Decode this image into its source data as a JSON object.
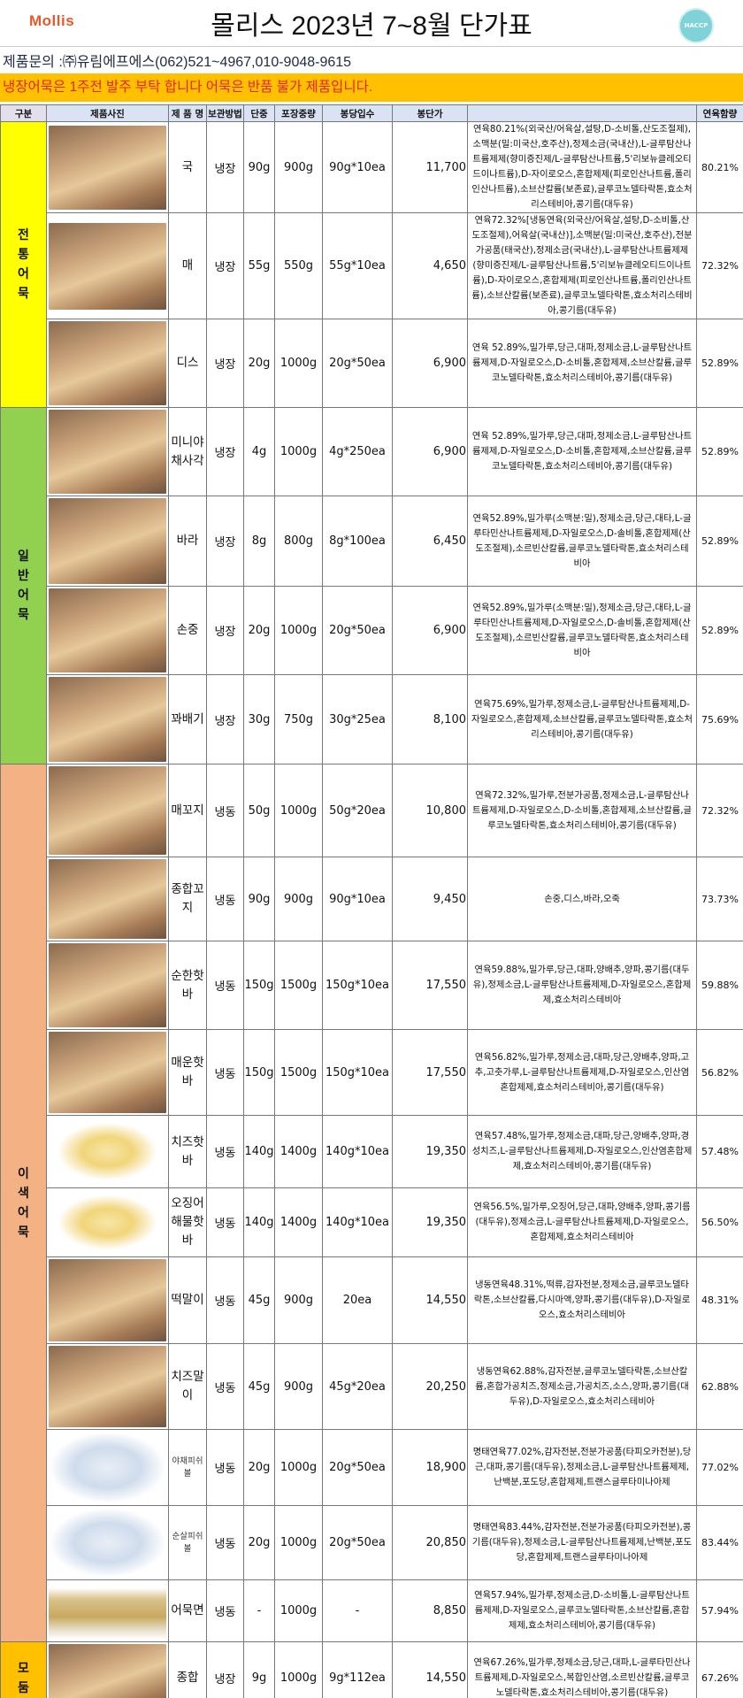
{
  "header": {
    "logo": "Mollis",
    "title": "몰리스 2023년 7~8월 단가표",
    "certification": "HACCP",
    "contact": "제품문의 :㈜유림에프에스(062)521~4967,010-9048-9615",
    "notice": "냉장어묵은 1주전 발주 부탁 합니다  어묵은 반품 불가 제품입니다."
  },
  "colors": {
    "notice_bg": "#FFC000",
    "notice_text": "#E8231A",
    "traditional": "#FFFF00",
    "general": "#92D050",
    "special": "#F4B183",
    "assorted": "#FFC000",
    "header_bg": "#DAE3F3"
  },
  "table": {
    "columns": [
      "구분",
      "제품사진",
      "제 품 명",
      "보관방법",
      "단중",
      "포장중량",
      "봉당입수",
      "봉단가",
      "",
      "연육함량"
    ],
    "categories": [
      {
        "label": "전통어묵",
        "color": "#FFFF00",
        "rows": 3
      },
      {
        "label": "일반어묵",
        "color": "#92D050",
        "rows": 4
      },
      {
        "label": "이색어묵",
        "color": "#F4B183",
        "rows": 11
      },
      {
        "label": "모둠",
        "color": "#FFC000",
        "rows": 1
      }
    ],
    "rows": [
      {
        "name": "국",
        "storage": "냉장",
        "unit_weight": "90g",
        "pack_weight": "900g",
        "per_pack": "90g*10ea",
        "price": "11,700",
        "ingredients": "연육80.21%(외국산/어육살,설탕,D-소비톨,산도조절제),소맥분(밀:미국산,호주산),정제소금(국내산),L-글루탐산나트륨제제(향미증진제/L-글루탐산나트륨,5'리보뉴클레오티드이나트륨),D-자이로오스,혼합제제(피로인산나트륨,폴리인산나트륨),소브산칼륨(보존료),글루코노델타락톤,효소처리스테비아,콩기름(대두유)",
        "fish_pct": "80.21%"
      },
      {
        "name": "매",
        "storage": "냉장",
        "unit_weight": "55g",
        "pack_weight": "550g",
        "per_pack": "55g*10ea",
        "price": "4,650",
        "ingredients": "연육72.32%[냉동연육(외국산/어육살,설탕,D-소비톨,산도조절제),어육살(국내산)],소맥분(밀:미국산,호주산),전분가공품(태국산),정제소금(국내산),L-글루탐산나트륨제제(향미증진제/L-글루탐산나트륨,5'리보뉴클레오티드이나트륨),D-자이로오스,혼합제제(피로인산나트륨,폴리인산나트륨),소브산칼륨(보존료),글루코노델타락톤,효소처리스테비아,콩기름(대두유)",
        "fish_pct": "72.32%"
      },
      {
        "name": "디스",
        "storage": "냉장",
        "unit_weight": "20g",
        "pack_weight": "1000g",
        "per_pack": "20g*50ea",
        "price": "6,900",
        "ingredients": "연육 52.89%,밀가루,당근,대파,정제소금,L-글루탐산나트륨제제,D-자일로오스,D-소비톨,혼합제제,소브산칼륨,글루코노델타락톤,효소처리스테비아,콩기름(대두유)",
        "fish_pct": "52.89%"
      },
      {
        "name": "미니야채사각",
        "storage": "냉장",
        "unit_weight": "4g",
        "pack_weight": "1000g",
        "per_pack": "4g*250ea",
        "price": "6,900",
        "ingredients": "연육 52.89%,밀가루,당근,대파,정제소금,L-글루탐산나트륨제제,D-자일로오스,D-소비톨,혼합제제,소브산칼륨,글루코노델타락톤,효소처리스테비아,콩기름(대두유)",
        "fish_pct": "52.89%"
      },
      {
        "name": "바라",
        "storage": "냉장",
        "unit_weight": "8g",
        "pack_weight": "800g",
        "per_pack": "8g*100ea",
        "price": "6,450",
        "ingredients": "연육52.89%,밀가루(소맥분:밀),정제소금,당근,대타,L-글루타민산나트륨제제,D-자일로오스,D-솔비톨,혼합제제(산도조절제),소르빈산칼륨,글루코노델타락톤,효소처리스테비아",
        "fish_pct": "52.89%"
      },
      {
        "name": "손중",
        "storage": "냉장",
        "unit_weight": "20g",
        "pack_weight": "1000g",
        "per_pack": "20g*50ea",
        "price": "6,900",
        "ingredients": "연육52.89%,밀가루(소맥분:밀),정제소금,당근,대타,L-글루타민산나트륨제제,D-자일로오스,D-솔비톨,혼합제제(산도조절제),소르빈산칼륨,글루코노델타락톤,효소처리스테비아",
        "fish_pct": "52.89%"
      },
      {
        "name": "꽈배기",
        "storage": "냉장",
        "unit_weight": "30g",
        "pack_weight": "750g",
        "per_pack": "30g*25ea",
        "price": "8,100",
        "ingredients": "연육75.69%,밀가루,정제소금,L-글루탐산나트륨제제,D-자일로오스,혼합제제,소브산칼륨,글루코노델타락톤,효소처리스테비아,콩기름(대두유)",
        "fish_pct": "75.69%"
      },
      {
        "name": "매꼬지",
        "storage": "냉동",
        "unit_weight": "50g",
        "pack_weight": "1000g",
        "per_pack": "50g*20ea",
        "price": "10,800",
        "ingredients": "연육72.32%,밀가루,전분가공품,정제소금,L-글루탐산나트륨제제,D-자일로오스,D-소비톨,혼합제제,소브산칼륨,글루코노델타락톤,효소처리스테비아,콩기름(대두유)",
        "fish_pct": "72.32%"
      },
      {
        "name": "종합꼬지",
        "storage": "냉동",
        "unit_weight": "90g",
        "pack_weight": "900g",
        "per_pack": "90g*10ea",
        "price": "9,450",
        "ingredients": "손중,디스,바라,오죽",
        "fish_pct": "73.73%"
      },
      {
        "name": "순한핫바",
        "storage": "냉동",
        "unit_weight": "150g",
        "pack_weight": "1500g",
        "per_pack": "150g*10ea",
        "price": "17,550",
        "ingredients": "연육59.88%,밀가루,당근,대파,양배추,양파,콩기름(대두유),정제소금,L-글루탐산나트륨제제,D-자일로오스,혼합제제,효소처리스테비아",
        "fish_pct": "59.88%"
      },
      {
        "name": "매운핫바",
        "storage": "냉동",
        "unit_weight": "150g",
        "pack_weight": "1500g",
        "per_pack": "150g*10ea",
        "price": "17,550",
        "ingredients": "연육56.82%,밀가루,정제소금,대파,당근,양배추,양파,고추,고춧가루,L-글루탐산나트륨제제,D-자일로오스,인산염혼합제제,효소처리스테비아,콩기름(대두유)",
        "fish_pct": "56.82%"
      },
      {
        "name": "치즈핫바",
        "storage": "냉동",
        "unit_weight": "140g",
        "pack_weight": "1400g",
        "per_pack": "140g*10ea",
        "price": "19,350",
        "ingredients": "연육57.48%,밀가루,정제소금,대파,당근,양배추,양파,경성치즈,L-글루탐산나트륨제제,D-자일로오스,인산염혼합제제,효소처리스테비아,콩기름(대두유)",
        "fish_pct": "57.48%"
      },
      {
        "name": "오징어해물핫바",
        "storage": "냉동",
        "unit_weight": "140g",
        "pack_weight": "1400g",
        "per_pack": "140g*10ea",
        "price": "19,350",
        "ingredients": "연육56.5%,밀가루,오징어,당근,대파,양배추,양파,콩기름(대두유),정제소금,L-글루탐산나트륨제제,D-자일로오스,혼합제제,효소처리스테비아",
        "fish_pct": "56.50%"
      },
      {
        "name": "떡말이",
        "storage": "냉동",
        "unit_weight": "45g",
        "pack_weight": "900g",
        "per_pack": "20ea",
        "price": "14,550",
        "ingredients": "냉동연육48.31%,떡류,감자전분,정제소금,글루코노델타락톤,소브산칼륨,다시마액,양파,콩기름(대두유),D-자일로오스,효소처리스테비아",
        "fish_pct": "48.31%"
      },
      {
        "name": "치즈말이",
        "storage": "냉동",
        "unit_weight": "45g",
        "pack_weight": "900g",
        "per_pack": "45g*20ea",
        "price": "20,250",
        "ingredients": "냉동연육62.88%,감자전분,글루코노델타락톤,소브산칼륨,혼합가공치즈,정제소금,가공치즈,소스,양파,콩기름(대두유),D-자일로오스,효소처리스테비아",
        "fish_pct": "62.88%"
      },
      {
        "name": "야채피쉬볼",
        "storage": "냉동",
        "unit_weight": "20g",
        "pack_weight": "1000g",
        "per_pack": "20g*50ea",
        "price": "18,900",
        "ingredients": "명태연육77.02%,감자전분,전분가공품(타피오카전분),당근,대파,콩기름(대두유),정제소금,L-글루탐산나트륨제제,난백분,포도당,혼합제제,트랜스글루타미나아제",
        "fish_pct": "77.02%"
      },
      {
        "name": "순살피쉬볼",
        "storage": "냉동",
        "unit_weight": "20g",
        "pack_weight": "1000g",
        "per_pack": "20g*50ea",
        "price": "20,850",
        "ingredients": "명태연육83.44%,감자전분,전분가공품(타피오카전분),콩기름(대두유),정제소금,L-글루탐산나트륨제제,난백분,포도당,혼합제제,트랜스글루타미나아제",
        "fish_pct": "83.44%"
      },
      {
        "name": "어묵면",
        "storage": "냉동",
        "unit_weight": "-",
        "pack_weight": "1000g",
        "per_pack": "-",
        "price": "8,850",
        "ingredients": "연육57.94%,밀가루,정제소금,D-소비톨,L-글루탐산나트륨제제,D-자일로오스,글루코노델타락톤,소브산칼륨,혼합제제,효소처리스테비아,콩기름(대두유)",
        "fish_pct": "57.94%"
      },
      {
        "name": "종합",
        "storage": "냉장",
        "unit_weight": "9g",
        "pack_weight": "1000g",
        "per_pack": "9g*112ea",
        "price": "14,550",
        "ingredients": "연육67.26%,밀가루,정제소금,당근,대파,L-글루타민산나트륨제제,D-자일로오스,복합인산염,소르빈산칼륨,글루코노델타락톤,효소처리스테비아,콩기름(대두유)",
        "fish_pct": "67.26%"
      }
    ]
  }
}
